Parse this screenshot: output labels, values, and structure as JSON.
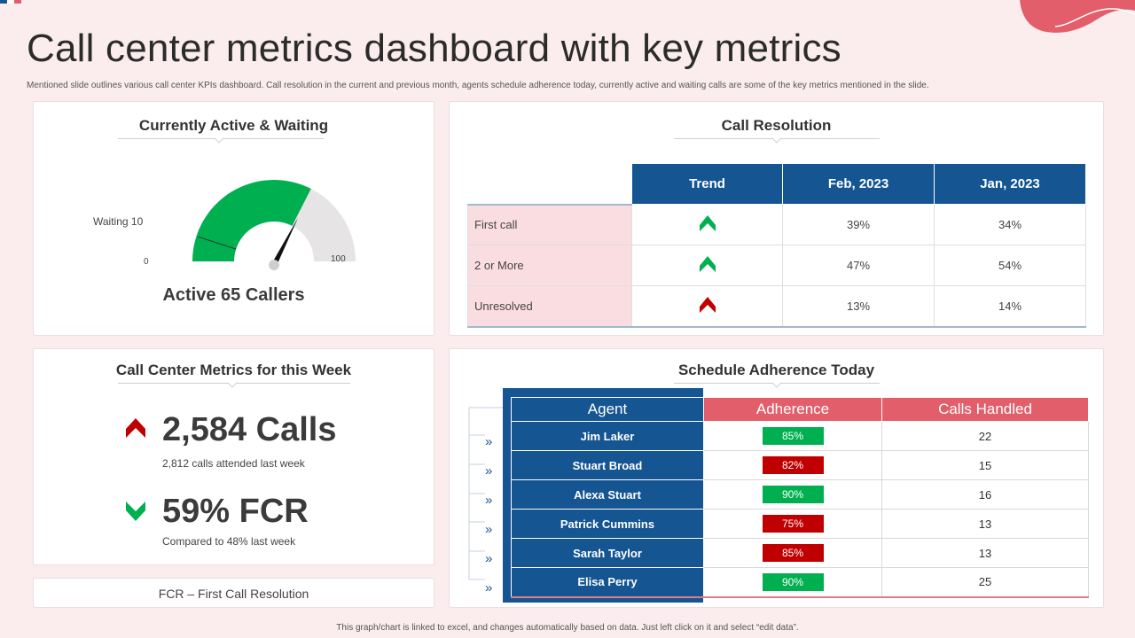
{
  "page": {
    "title": "Call center metrics dashboard with key metrics",
    "subtitle": "Mentioned slide outlines various call center KPIs dashboard. Call resolution in the current and previous month,  agents schedule adherence today, currently active and waiting calls are some  of the key metrics mentioned  in the slide.",
    "footer": "This graph/chart is linked to excel, and changes automatically based on data. Just left click on it and select “edit data”."
  },
  "colors": {
    "background": "#fbeced",
    "navy": "#145592",
    "red_header": "#e25e6a",
    "good": "#00b050",
    "bad": "#c00000",
    "wave": "#e25e6a"
  },
  "gauge": {
    "title": "Currently Active & Waiting",
    "waiting_label": "Waiting 10",
    "min_label": "0",
    "max_label": "100",
    "active_label": "Active 65 Callers",
    "min": 0,
    "max": 100,
    "active": 65,
    "waiting": 10
  },
  "call_resolution": {
    "title": "Call Resolution",
    "headers": [
      "Trend",
      "Feb, 2023",
      "Jan, 2023"
    ],
    "rows": [
      {
        "label": "First call",
        "trend_icon": "up-arrow-icon",
        "trend": "up",
        "feb": "39%",
        "jan": "34%"
      },
      {
        "label": "2 or More",
        "trend_icon": "up-arrow-icon",
        "trend": "up",
        "feb": "47%",
        "jan": "54%"
      },
      {
        "label": "Unresolved",
        "trend_icon": "up-arrow-icon",
        "trend": "bad",
        "feb": "13%",
        "jan": "14%"
      }
    ]
  },
  "weekly": {
    "title": "Call Center Metrics for this Week",
    "calls": {
      "value": "2,584 Calls",
      "sub": "2,812 calls attended last week",
      "icon": "chevron-up-icon"
    },
    "fcr": {
      "value": "59% FCR",
      "sub": "Compared to 48% last week",
      "icon": "chevron-down-icon"
    }
  },
  "fcr_note": "FCR – First Call Resolution",
  "schedule": {
    "title": "Schedule Adherence Today",
    "headers": [
      "Agent",
      "Adherence",
      "Calls Handled"
    ],
    "arrow_glyph": "»",
    "rows": [
      {
        "agent": "Jim Laker",
        "adherence": "85%",
        "status": "good",
        "calls": "22"
      },
      {
        "agent": "Stuart Broad",
        "adherence": "82%",
        "status": "bad",
        "calls": "15"
      },
      {
        "agent": "Alexa Stuart",
        "adherence": "90%",
        "status": "good",
        "calls": "16"
      },
      {
        "agent": "Patrick Cummins",
        "adherence": "75%",
        "status": "bad",
        "calls": "13"
      },
      {
        "agent": "Sarah Taylor",
        "adherence": "85%",
        "status": "bad",
        "calls": "13"
      },
      {
        "agent": "Elisa Perry",
        "adherence": "90%",
        "status": "good",
        "calls": "25"
      }
    ]
  }
}
